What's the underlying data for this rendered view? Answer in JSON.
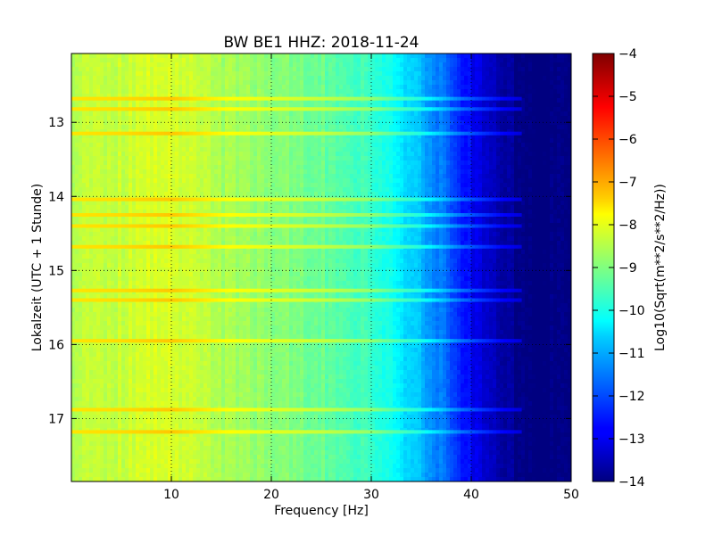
{
  "chart_data": {
    "type": "heatmap",
    "title": "BW BE1 HHZ: 2018-11-24",
    "xlabel": "Frequency [Hz]",
    "ylabel": "Lokalzeit (UTC + 1 Stunde)",
    "xlim": [
      0,
      50
    ],
    "ylim": [
      17.85,
      12.07
    ],
    "y_inverted": true,
    "xticks": [
      10,
      20,
      30,
      40,
      50
    ],
    "yticks": [
      13,
      14,
      15,
      16,
      17
    ],
    "grid": true,
    "colorbar": {
      "label": "Log10(Sqrt(m**2/s**2/Hz))",
      "min": -14,
      "max": -4,
      "ticks": [
        -4,
        -5,
        -6,
        -7,
        -8,
        -9,
        -10,
        -11,
        -12,
        -13,
        -14
      ],
      "colormap": "jet"
    },
    "spectrum_profile": {
      "frequency_hz": [
        0,
        5,
        10,
        15,
        20,
        25,
        30,
        32,
        35,
        37,
        39,
        41,
        43,
        45,
        50
      ],
      "log_amplitude": [
        -8.4,
        -8.3,
        -8.1,
        -8.6,
        -8.9,
        -9.2,
        -9.7,
        -10.2,
        -10.9,
        -11.6,
        -12.5,
        -13.1,
        -13.6,
        -14,
        -14
      ]
    },
    "horizontal_bands_hours": [
      12.68,
      12.82,
      13.15,
      14.04,
      14.25,
      14.4,
      14.68,
      15.27,
      15.4,
      15.95,
      16.88,
      17.18
    ]
  }
}
